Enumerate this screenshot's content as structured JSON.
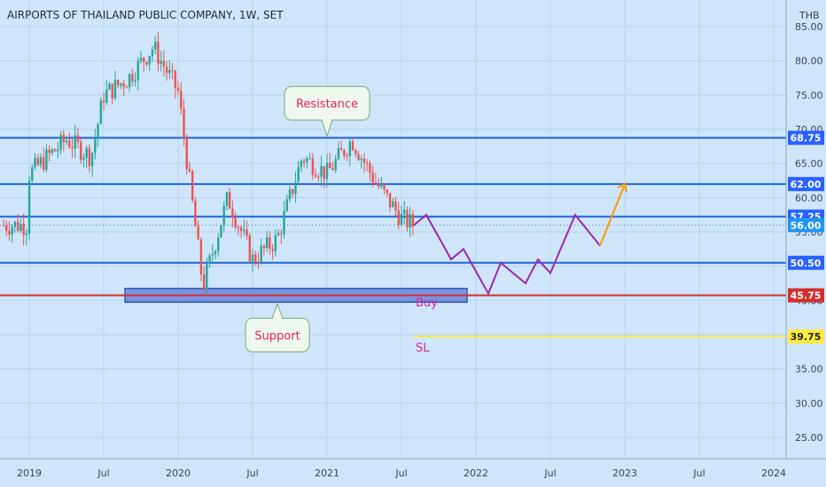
{
  "chart_data": {
    "type": "candlestick",
    "title": "AIRPORTS OF THAILAND PUBLIC COMPANY, 1W, SET",
    "currency": "THB",
    "y_ticks": [
      "25.00",
      "30.00",
      "35.00",
      "40.00",
      "45.00",
      "50.00",
      "55.00",
      "60.00",
      "65.00",
      "70.00",
      "75.00",
      "80.00",
      "85.00"
    ],
    "x_ticks": [
      "2019",
      "Jul",
      "2020",
      "Jul",
      "2021",
      "Jul",
      "2022",
      "Jul",
      "2023",
      "Jul",
      "2024"
    ],
    "ylim": [
      21,
      87
    ],
    "colors": {
      "background": "#cfe6fa",
      "up": "#26a69a",
      "down": "#ef5350",
      "level_line": "#1e63d6",
      "buy_line": "#d32f2f",
      "sl_line": "#ffeb3b",
      "projection": "#9c27b0",
      "target_arrow": "#ff9800"
    },
    "levels": [
      {
        "label": "68.75",
        "value": 68.75,
        "color": "#1e63d6",
        "label_bg": "#2962ff"
      },
      {
        "label": "62.00",
        "value": 62.0,
        "color": "#1e63d6",
        "label_bg": "#2962ff"
      },
      {
        "label": "57.25",
        "value": 57.25,
        "color": "#1e63d6",
        "label_bg": "#2962ff"
      },
      {
        "label": "50.50",
        "value": 50.5,
        "color": "#1e63d6",
        "label_bg": "#2962ff"
      },
      {
        "label": "45.75",
        "value": 45.75,
        "color": "#d32f2f",
        "label_bg": "#d32f2f"
      },
      {
        "label": "39.75",
        "value": 39.75,
        "color": "#ffeb3b",
        "label_bg": "#ffeb3b"
      }
    ],
    "last_price": {
      "label": "56.00",
      "value": 56.0
    },
    "candles_summary": [
      {
        "t": "2019-01",
        "close": 63.5
      },
      {
        "t": "2019-04",
        "close": 68.5
      },
      {
        "t": "2019-06",
        "close": 66.0
      },
      {
        "t": "2019-07",
        "close": 75.0
      },
      {
        "t": "2019-09",
        "close": 77.5
      },
      {
        "t": "2019-11",
        "close": 82.0
      },
      {
        "t": "2020-01",
        "close": 75.5
      },
      {
        "t": "2020-03",
        "close": 47.0
      },
      {
        "t": "2020-05",
        "close": 60.0
      },
      {
        "t": "2020-07",
        "close": 51.0
      },
      {
        "t": "2020-09",
        "close": 54.0
      },
      {
        "t": "2020-11",
        "close": 66.0
      },
      {
        "t": "2021-01",
        "close": 63.5
      },
      {
        "t": "2021-03",
        "close": 68.5
      },
      {
        "t": "2021-05",
        "close": 62.0
      },
      {
        "t": "2021-07",
        "close": 57.0
      },
      {
        "t": "2021-08",
        "close": 56.0
      }
    ],
    "projection": {
      "points": [
        {
          "t": "2021-08",
          "v": 56.0
        },
        {
          "t": "2021-09",
          "v": 57.5
        },
        {
          "t": "2021-11",
          "v": 51.0
        },
        {
          "t": "2021-12",
          "v": 52.5
        },
        {
          "t": "2022-02",
          "v": 46.0
        },
        {
          "t": "2022-03",
          "v": 50.5
        },
        {
          "t": "2022-05",
          "v": 47.5
        },
        {
          "t": "2022-06",
          "v": 51.0
        },
        {
          "t": "2022-07",
          "v": 49.0
        },
        {
          "t": "2022-09",
          "v": 57.5
        },
        {
          "t": "2022-11",
          "v": 53.0
        }
      ],
      "target": {
        "t": "2023-01",
        "v": 62.0
      }
    },
    "support_zone": {
      "from": "2019-09",
      "to": "2021-12",
      "low": 45.0,
      "high": 46.5
    },
    "annotations": [
      {
        "text": "Resistance",
        "kind": "callout",
        "t": "2021-01",
        "v": 68.75
      },
      {
        "text": "Support",
        "kind": "callout",
        "t": "2020-09",
        "v": 45.0
      },
      {
        "text": "Buy",
        "kind": "text",
        "t": "2021-08",
        "v": 44.8
      },
      {
        "text": "SL",
        "kind": "text",
        "t": "2021-08",
        "v": 38.2
      }
    ]
  }
}
